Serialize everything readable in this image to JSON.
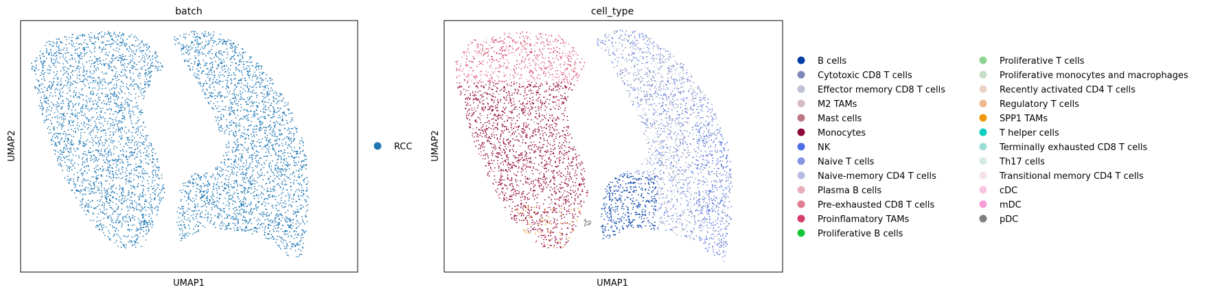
{
  "chart_data": [
    {
      "type": "scatter",
      "title": "batch",
      "xlabel": "UMAP1",
      "ylabel": "UMAP2",
      "grid": false,
      "ticks": false,
      "legend_placement": "right",
      "legend": [
        {
          "label": "RCC",
          "color": "#1f77b4"
        }
      ]
    },
    {
      "type": "scatter",
      "title": "cell_type",
      "xlabel": "UMAP1",
      "ylabel": "UMAP2",
      "grid": false,
      "ticks": false,
      "legend_placement": "right",
      "legend_columns": 2,
      "legend": [
        {
          "label": "B cells",
          "color": "#023fa5"
        },
        {
          "label": "Cytotoxic CD8 T cells",
          "color": "#7d87b9"
        },
        {
          "label": "Effector memory CD8 T cells",
          "color": "#bec1d4"
        },
        {
          "label": "M2 TAMs",
          "color": "#d6bcc0"
        },
        {
          "label": "Mast cells",
          "color": "#bb7784"
        },
        {
          "label": "Monocytes",
          "color": "#8e063b"
        },
        {
          "label": "NK",
          "color": "#4a6fe3"
        },
        {
          "label": "Naive T cells",
          "color": "#8595e1"
        },
        {
          "label": "Naive-memory CD4 T cells",
          "color": "#b5bbe3"
        },
        {
          "label": "Plasma B cells",
          "color": "#e6afb9"
        },
        {
          "label": "Pre-exhausted CD8 T cells",
          "color": "#e07b91"
        },
        {
          "label": "Proinflamatory TAMs",
          "color": "#d33f6a"
        },
        {
          "label": "Proliferative B cells",
          "color": "#11c638"
        },
        {
          "label": "Proliferative T cells",
          "color": "#8dd593"
        },
        {
          "label": "Proliferative monocytes and macrophages",
          "color": "#c6dec7"
        },
        {
          "label": "Recently activated CD4 T cells",
          "color": "#ead3c6"
        },
        {
          "label": "Regulatory T cells",
          "color": "#f0b98d"
        },
        {
          "label": "SPP1 TAMs",
          "color": "#ef9708"
        },
        {
          "label": "T helper cells",
          "color": "#0fcfc0"
        },
        {
          "label": "Terminally exhausted CD8 T cells",
          "color": "#9cded6"
        },
        {
          "label": "Th17 cells",
          "color": "#d5eae7"
        },
        {
          "label": "Transitional memory CD4 T cells",
          "color": "#f3e1eb"
        },
        {
          "label": "cDC",
          "color": "#f6c4e1"
        },
        {
          "label": "mDC",
          "color": "#f79cd4"
        },
        {
          "label": "pDC",
          "color": "#7f7f7f"
        }
      ]
    }
  ]
}
